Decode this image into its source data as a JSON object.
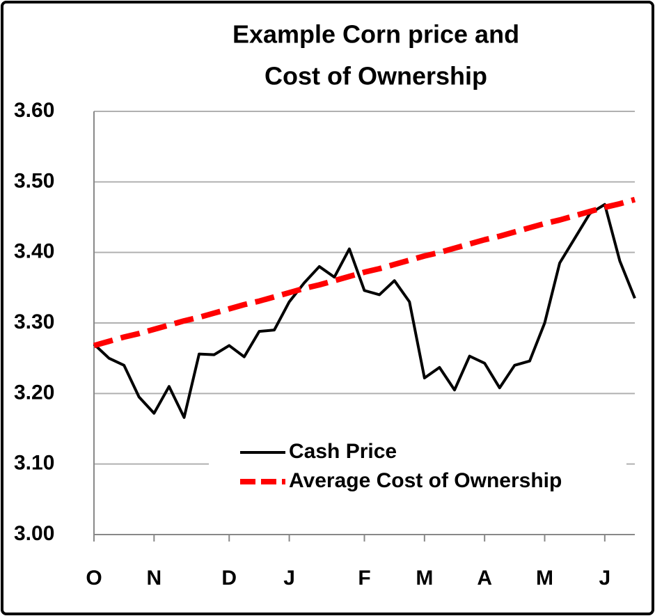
{
  "chart_data": {
    "type": "line",
    "title": [
      "Example Corn price and",
      "Cost of Ownership"
    ],
    "categories": [
      "O",
      null,
      null,
      null,
      "N",
      null,
      null,
      null,
      null,
      "D",
      null,
      null,
      null,
      "J",
      null,
      null,
      null,
      null,
      "F",
      null,
      null,
      null,
      "M",
      null,
      null,
      null,
      "A",
      null,
      null,
      null,
      "M",
      null,
      null,
      null,
      "J",
      null,
      null
    ],
    "series": [
      {
        "name": "Cash Price",
        "color": "#000000",
        "dashed": false,
        "values": [
          3.27,
          3.25,
          3.24,
          3.195,
          3.172,
          3.21,
          3.166,
          3.256,
          3.255,
          3.268,
          3.252,
          3.288,
          3.29,
          3.33,
          3.357,
          3.38,
          3.365,
          3.405,
          3.346,
          3.34,
          3.36,
          3.33,
          3.222,
          3.237,
          3.205,
          3.253,
          3.243,
          3.208,
          3.24,
          3.246,
          3.3,
          3.385,
          3.42,
          3.455,
          3.468,
          3.388,
          3.335
        ]
      },
      {
        "name": "Average Cost of Ownership",
        "color": "#ff0000",
        "dashed": true,
        "values": [
          3.268,
          3.274,
          3.28,
          3.285,
          3.291,
          3.297,
          3.303,
          3.308,
          3.314,
          3.32,
          3.326,
          3.331,
          3.337,
          3.343,
          3.349,
          3.354,
          3.36,
          3.366,
          3.372,
          3.377,
          3.383,
          3.389,
          3.395,
          3.4,
          3.406,
          3.412,
          3.418,
          3.423,
          3.429,
          3.435,
          3.441,
          3.446,
          3.452,
          3.458,
          3.464,
          3.469,
          3.475
        ]
      }
    ],
    "ylim": [
      3.0,
      3.6
    ],
    "yticks": [
      {
        "value": 3.0,
        "label": "3.00"
      },
      {
        "value": 3.1,
        "label": "3.10"
      },
      {
        "value": 3.2,
        "label": "3.20"
      },
      {
        "value": 3.3,
        "label": "3.30"
      },
      {
        "value": 3.4,
        "label": "3.40"
      },
      {
        "value": 3.5,
        "label": "3.50"
      },
      {
        "value": 3.6,
        "label": "3.60"
      }
    ],
    "grid": true,
    "legend": "bottom-center"
  }
}
